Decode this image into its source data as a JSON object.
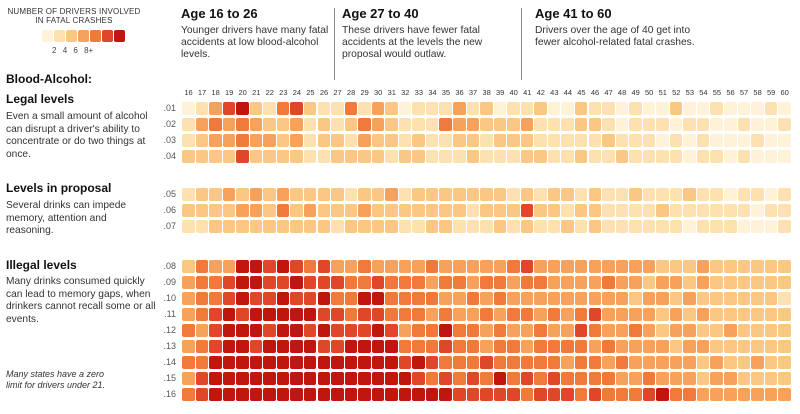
{
  "legend": {
    "title": "NUMBER OF DRIVERS INVOLVED IN FATAL CRASHES",
    "labels": [
      "2",
      "4",
      "6",
      "8+"
    ],
    "colors": [
      "#fff2d9",
      "#fde1b0",
      "#fbc784",
      "#f7a25c",
      "#ef7a3c",
      "#e0472a",
      "#c1150f"
    ]
  },
  "age_groups": [
    {
      "title": "Age 16 to 26",
      "description": "Younger drivers have many fatal accidents at low blood-alcohol levels."
    },
    {
      "title": "Age 27 to 40",
      "description": "These drivers have fewer fatal accidents at the levels the new proposal would outlaw."
    },
    {
      "title": "Age 41 to 60",
      "description": "Drivers over the age of 40 get into fewer alcohol-related fatal crashes."
    }
  ],
  "sections": {
    "header": "Blood-Alcohol:",
    "legal": {
      "title": "Legal levels",
      "description": "Even a small amount of alcohol can disrupt a driver's ability to concentrate or do two things at once."
    },
    "proposal": {
      "title": "Levels in proposal",
      "description": "Several drinks can impede memory, attention and reasoning."
    },
    "illegal": {
      "title": "Illegal levels",
      "description": "Many drinks consumed quickly can lead to memory gaps, when drinkers cannot recall some or all events."
    }
  },
  "footnote": "Many states have a zero limit for drivers under 21.",
  "chart_data": {
    "type": "heatmap",
    "x": [
      16,
      17,
      18,
      19,
      20,
      21,
      22,
      23,
      24,
      25,
      26,
      27,
      28,
      29,
      30,
      31,
      32,
      33,
      34,
      35,
      36,
      37,
      38,
      39,
      40,
      41,
      42,
      43,
      44,
      45,
      46,
      47,
      48,
      49,
      50,
      51,
      52,
      53,
      54,
      55,
      56,
      57,
      58,
      59,
      60
    ],
    "y": [
      ".01",
      ".02",
      ".03",
      ".04",
      ".05",
      ".06",
      ".07",
      ".08",
      ".09",
      ".10",
      ".11",
      ".12",
      ".13",
      ".14",
      ".15",
      ".16"
    ],
    "scale": "count of drivers involved in fatal crashes, 0 to 8+",
    "values": [
      [
        1,
        2,
        4,
        6,
        8,
        3,
        2,
        5,
        6,
        3,
        2,
        2,
        5,
        2,
        4,
        3,
        1,
        2,
        2,
        2,
        4,
        2,
        3,
        1,
        2,
        2,
        3,
        1,
        1,
        3,
        2,
        2,
        1,
        2,
        1,
        1,
        3,
        1,
        1,
        2,
        1,
        1,
        1,
        2,
        1
      ],
      [
        2,
        4,
        5,
        4,
        5,
        4,
        3,
        3,
        4,
        2,
        3,
        2,
        3,
        5,
        4,
        3,
        2,
        2,
        2,
        5,
        4,
        4,
        3,
        3,
        3,
        4,
        2,
        2,
        2,
        3,
        3,
        2,
        1,
        2,
        2,
        2,
        1,
        2,
        2,
        1,
        1,
        2,
        1,
        1,
        2
      ],
      [
        2,
        3,
        4,
        4,
        5,
        4,
        4,
        3,
        4,
        2,
        3,
        3,
        2,
        4,
        3,
        3,
        2,
        3,
        2,
        2,
        3,
        3,
        2,
        3,
        3,
        3,
        2,
        2,
        2,
        2,
        2,
        3,
        2,
        2,
        2,
        1,
        2,
        1,
        2,
        1,
        1,
        1,
        2,
        1,
        1
      ],
      [
        3,
        3,
        3,
        3,
        6,
        3,
        3,
        3,
        3,
        2,
        2,
        3,
        3,
        3,
        3,
        2,
        3,
        3,
        2,
        2,
        2,
        3,
        2,
        2,
        2,
        3,
        3,
        2,
        2,
        3,
        2,
        2,
        3,
        2,
        2,
        2,
        2,
        1,
        2,
        2,
        1,
        2,
        1,
        1,
        1
      ],
      [
        2,
        3,
        3,
        4,
        3,
        4,
        3,
        4,
        3,
        3,
        3,
        3,
        2,
        3,
        3,
        4,
        2,
        3,
        3,
        3,
        3,
        3,
        3,
        3,
        2,
        3,
        2,
        3,
        3,
        2,
        3,
        2,
        2,
        3,
        2,
        2,
        2,
        3,
        2,
        2,
        1,
        2,
        2,
        1,
        2
      ],
      [
        3,
        3,
        3,
        3,
        4,
        4,
        3,
        5,
        3,
        4,
        3,
        3,
        3,
        4,
        3,
        3,
        3,
        3,
        3,
        3,
        3,
        2,
        3,
        3,
        3,
        6,
        3,
        3,
        2,
        3,
        3,
        2,
        2,
        2,
        2,
        3,
        2,
        2,
        2,
        2,
        2,
        2,
        1,
        2,
        2
      ],
      [
        2,
        2,
        3,
        3,
        3,
        3,
        3,
        3,
        3,
        3,
        3,
        2,
        3,
        3,
        3,
        3,
        2,
        2,
        3,
        3,
        2,
        2,
        2,
        3,
        2,
        3,
        2,
        2,
        3,
        2,
        3,
        2,
        2,
        2,
        2,
        2,
        2,
        1,
        2,
        2,
        2,
        1,
        1,
        1,
        2
      ],
      [
        3,
        5,
        4,
        4,
        7,
        7,
        6,
        7,
        6,
        5,
        6,
        4,
        4,
        5,
        4,
        4,
        4,
        4,
        5,
        4,
        4,
        4,
        4,
        4,
        5,
        6,
        4,
        4,
        4,
        4,
        4,
        4,
        4,
        4,
        4,
        3,
        3,
        3,
        4,
        3,
        3,
        3,
        3,
        3,
        3
      ],
      [
        4,
        5,
        5,
        6,
        7,
        7,
        6,
        6,
        7,
        6,
        6,
        6,
        5,
        5,
        6,
        5,
        5,
        5,
        4,
        5,
        5,
        4,
        5,
        5,
        4,
        5,
        5,
        4,
        4,
        4,
        4,
        5,
        4,
        4,
        3,
        4,
        4,
        3,
        4,
        3,
        3,
        3,
        3,
        3,
        3
      ],
      [
        4,
        5,
        5,
        6,
        7,
        6,
        6,
        7,
        6,
        6,
        7,
        5,
        5,
        7,
        7,
        5,
        5,
        5,
        5,
        4,
        4,
        5,
        4,
        5,
        4,
        4,
        4,
        4,
        4,
        4,
        4,
        4,
        4,
        3,
        4,
        4,
        3,
        4,
        3,
        3,
        3,
        3,
        3,
        3,
        2
      ],
      [
        4,
        5,
        6,
        7,
        6,
        7,
        7,
        8,
        7,
        7,
        6,
        6,
        5,
        6,
        6,
        5,
        5,
        5,
        4,
        5,
        4,
        4,
        5,
        4,
        5,
        5,
        4,
        5,
        4,
        5,
        6,
        4,
        4,
        4,
        4,
        3,
        4,
        3,
        4,
        3,
        3,
        3,
        3,
        3,
        3
      ],
      [
        5,
        4,
        6,
        7,
        7,
        7,
        6,
        7,
        8,
        6,
        7,
        6,
        6,
        6,
        7,
        6,
        4,
        5,
        5,
        7,
        5,
        5,
        4,
        5,
        4,
        4,
        5,
        4,
        4,
        6,
        5,
        4,
        4,
        5,
        4,
        3,
        4,
        4,
        3,
        3,
        4,
        3,
        3,
        3,
        3
      ],
      [
        4,
        5,
        6,
        8,
        7,
        6,
        8,
        7,
        7,
        8,
        6,
        6,
        7,
        8,
        8,
        7,
        5,
        5,
        5,
        6,
        5,
        5,
        4,
        5,
        5,
        4,
        5,
        5,
        5,
        5,
        4,
        5,
        4,
        4,
        4,
        4,
        3,
        4,
        4,
        3,
        3,
        3,
        3,
        3,
        3
      ],
      [
        5,
        5,
        7,
        8,
        7,
        7,
        7,
        8,
        8,
        8,
        7,
        7,
        8,
        7,
        8,
        8,
        6,
        7,
        6,
        5,
        5,
        5,
        6,
        5,
        5,
        5,
        5,
        5,
        4,
        5,
        5,
        4,
        5,
        4,
        4,
        4,
        4,
        4,
        3,
        4,
        3,
        3,
        4,
        3,
        3
      ],
      [
        4,
        6,
        7,
        8,
        8,
        8,
        8,
        7,
        8,
        8,
        8,
        8,
        7,
        8,
        7,
        8,
        7,
        6,
        5,
        6,
        5,
        6,
        5,
        8,
        5,
        6,
        5,
        6,
        5,
        5,
        5,
        5,
        4,
        4,
        5,
        4,
        4,
        4,
        3,
        4,
        4,
        3,
        3,
        3,
        3
      ],
      [
        5,
        6,
        8,
        8,
        8,
        8,
        8,
        8,
        8,
        8,
        8,
        8,
        8,
        8,
        8,
        8,
        8,
        7,
        7,
        7,
        6,
        6,
        6,
        6,
        6,
        5,
        6,
        6,
        6,
        5,
        6,
        5,
        5,
        5,
        6,
        8,
        5,
        5,
        4,
        4,
        4,
        4,
        4,
        4,
        4
      ]
    ]
  }
}
